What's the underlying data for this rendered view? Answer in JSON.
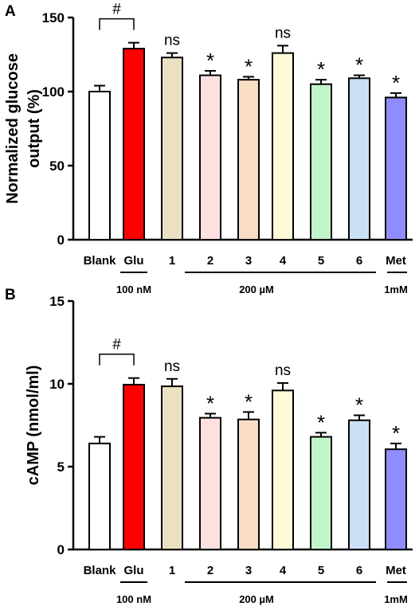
{
  "chart_data": [
    {
      "panel": "A",
      "type": "bar",
      "ylabel_line1": "Normalized glucose",
      "ylabel_line2": "output (%)",
      "ylim": [
        0,
        150
      ],
      "yticks": [
        "0",
        "50",
        "100",
        "150"
      ],
      "categories": [
        "Blank",
        "Glu",
        "1",
        "2",
        "3",
        "4",
        "5",
        "6",
        "Met"
      ],
      "values": [
        100,
        129,
        123,
        111,
        108,
        126,
        105,
        109,
        96
      ],
      "errors": [
        4,
        4,
        3,
        3,
        2,
        5,
        3,
        2,
        3
      ],
      "colors": [
        "#ffffff",
        "#ff0000",
        "#ece0c2",
        "#fde0e0",
        "#f9dcc4",
        "#fffbd9",
        "#bff5c8",
        "#c9e0f7",
        "#8f8cff"
      ],
      "annotations": [
        "",
        "",
        "ns",
        "*",
        "*",
        "ns",
        "*",
        "*",
        "*"
      ],
      "bracket_label": "#",
      "groups": [
        {
          "label": "100 nM"
        },
        {
          "label": "200 µM"
        },
        {
          "label": "1mM"
        }
      ]
    },
    {
      "panel": "B",
      "type": "bar",
      "ylabel_line1": "cAMP (nmol/ml)",
      "ylabel_line2": "",
      "ylim": [
        0,
        15
      ],
      "yticks": [
        "0",
        "5",
        "10",
        "15"
      ],
      "categories": [
        "Blank",
        "Glu",
        "1",
        "2",
        "3",
        "4",
        "5",
        "6",
        "Met"
      ],
      "values": [
        6.4,
        9.95,
        9.85,
        7.95,
        7.85,
        9.6,
        6.8,
        7.8,
        6.05
      ],
      "errors": [
        0.4,
        0.4,
        0.45,
        0.25,
        0.45,
        0.45,
        0.25,
        0.3,
        0.35
      ],
      "colors": [
        "#ffffff",
        "#ff0000",
        "#ece0c2",
        "#fde0e0",
        "#f9dcc4",
        "#fffbd9",
        "#bff5c8",
        "#c9e0f7",
        "#8f8cff"
      ],
      "annotations": [
        "",
        "",
        "ns",
        "*",
        "*",
        "ns",
        "*",
        "*",
        "*"
      ],
      "bracket_label": "#",
      "groups": [
        {
          "label": "100 nM"
        },
        {
          "label": "200 µM"
        },
        {
          "label": "1mM"
        }
      ]
    }
  ]
}
